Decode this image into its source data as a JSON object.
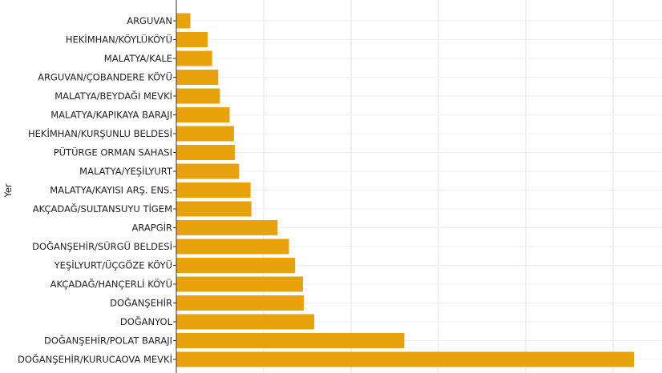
{
  "chart_data": {
    "type": "bar",
    "orientation": "horizontal",
    "title": "",
    "xlabel": "",
    "ylabel": "Yer",
    "xlim": [
      0,
      5.56
    ],
    "x_tick_labels_visible": false,
    "grid": true,
    "bar_color": "#E8A20C",
    "categories": [
      "ARGUVAN",
      "HEKİMHAN/KÖYLÜKÖYÜ",
      "MALATYA/KALE",
      "ARGUVAN/ÇOBANDERE KÖYÜ",
      "MALATYA/BEYDAĞI MEVKİ",
      "MALATYA/KAPIKAYA BARAJI",
      "HEKİMHAN/KURŞUNLU BELDESİ",
      "PÜTÜRGE ORMAN SAHASI",
      "MALATYA/YEŞİLYURT",
      "MALATYA/KAYISI ARŞ. ENS.",
      "AKÇADAĞ/SULTANSUYU TİGEM",
      "ARAPGİR",
      "DOĞANŞEHİR/SÜRGÜ BELDESİ",
      "YEŞİLYURT/ÜÇGÖZE KÖYÜ",
      "AKÇADAĞ/HANÇERLİ KÖYÜ",
      "DOĞANŞEHİR",
      "DOĞANYOL",
      "DOĞANŞEHİR/POLAT BARAJI",
      "DOĞANŞEHİR/KURUCAOVA MEVKİ"
    ],
    "values": [
      0.16,
      0.36,
      0.41,
      0.48,
      0.5,
      0.61,
      0.66,
      0.67,
      0.72,
      0.85,
      0.86,
      1.16,
      1.29,
      1.36,
      1.45,
      1.46,
      1.58,
      2.61,
      5.24
    ]
  }
}
